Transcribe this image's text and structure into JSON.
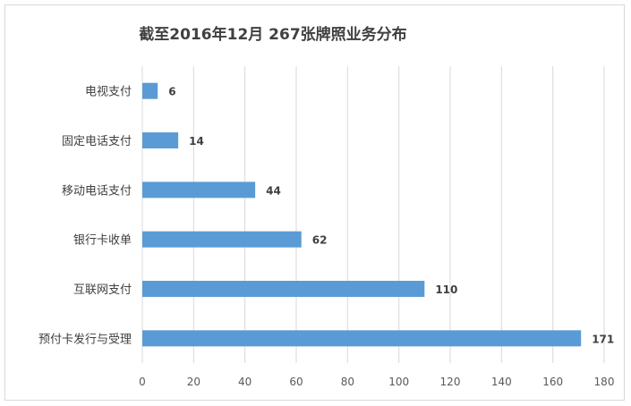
{
  "chart_data": {
    "type": "bar",
    "orientation": "horizontal",
    "title": "截至2016年12月 267张牌照业务分布",
    "categories": [
      "电视支付",
      "固定电话支付",
      "移动电话支付",
      "银行卡收单",
      "互联网支付",
      "预付卡发行与受理"
    ],
    "values": [
      6,
      14,
      44,
      62,
      110,
      171
    ],
    "xlim": [
      0,
      180
    ],
    "x_ticks": [
      "0",
      "20",
      "40",
      "60",
      "80",
      "100",
      "120",
      "140",
      "160",
      "180"
    ],
    "grid": "vertical",
    "bar_color": "#5b9bd5",
    "data_labels": true
  }
}
